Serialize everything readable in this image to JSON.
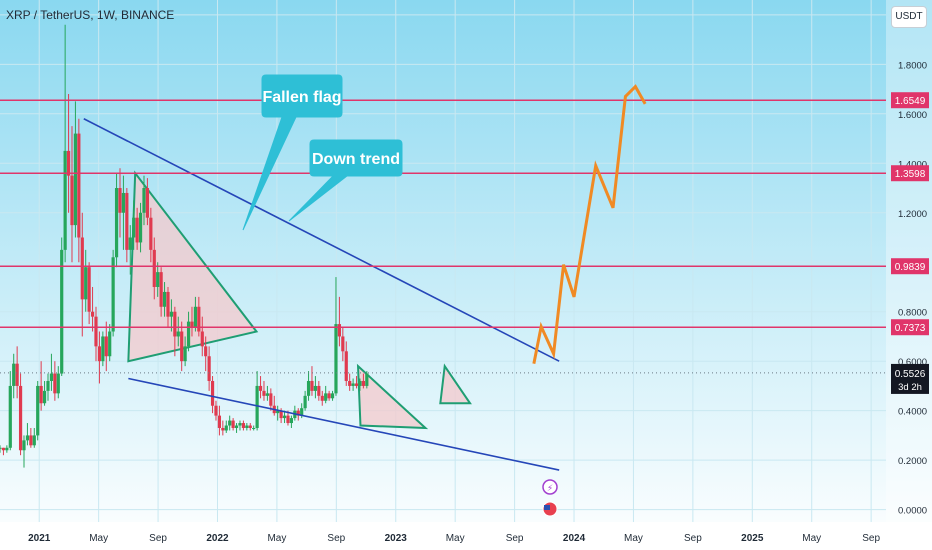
{
  "header": {
    "symbol_title": "XRP / TetherUS, 1W, BINANCE",
    "currency": "USDT"
  },
  "colors": {
    "background_top": "#8ad8f0",
    "background_bottom": "#ffffff",
    "candle_up": "#26a65b",
    "candle_down": "#e03a4f",
    "level_line": "#e0356a",
    "trend_line": "#2546b8",
    "triangle_edge": "#1f9e73",
    "triangle_fill": "#f4c9cc",
    "callout": "#2ebfd6",
    "projection": "#f08a24",
    "last_price_bg": "#131722"
  },
  "chart_data": {
    "type": "candlestick",
    "title": "XRP / TetherUS, 1W, BINANCE",
    "x_axis": {
      "ticks": [
        "2021",
        "May",
        "Sep",
        "2022",
        "May",
        "Sep",
        "2023",
        "May",
        "Sep",
        "2024",
        "May",
        "Sep",
        "2025",
        "May",
        "Sep"
      ],
      "range": [
        "2020-10",
        "2025-09"
      ]
    },
    "y_axis": {
      "ticks": [
        "2.0000",
        "1.8000",
        "1.6000",
        "1.4000",
        "1.2000",
        "1.0000",
        "0.8000",
        "0.6000",
        "0.4000",
        "0.2000",
        "0.0000"
      ],
      "range": [
        -0.05,
        2.06
      ],
      "scale": "linear"
    },
    "price_levels": [
      {
        "label": "1.6549",
        "value": 1.6549
      },
      {
        "label": "1.3598",
        "value": 1.3598
      },
      {
        "label": "0.9839",
        "value": 0.9839
      },
      {
        "label": "0.7373",
        "value": 0.7373
      }
    ],
    "last_price": {
      "label": "0.5526",
      "value": 0.5526,
      "countdown": "3d 2h"
    },
    "annotations": [
      {
        "label": "Fallen flag",
        "kind": "callout"
      },
      {
        "label": "Down trend",
        "kind": "callout"
      }
    ],
    "trend_lines": [
      {
        "name": "upper",
        "from": [
          "2021-04",
          1.58
        ],
        "to": [
          "2023-12",
          0.6
        ]
      },
      {
        "name": "lower",
        "from": [
          "2021-07",
          0.53
        ],
        "to": [
          "2023-12",
          0.16
        ]
      }
    ],
    "triangles": [
      {
        "points": [
          [
            "2021-07-15",
            1.36
          ],
          [
            "2021-07-01",
            0.6
          ],
          [
            "2022-03-20",
            0.72
          ]
        ]
      },
      {
        "points": [
          [
            "2022-10-15",
            0.58
          ],
          [
            "2022-10-20",
            0.34
          ],
          [
            "2023-03-01",
            0.33
          ]
        ]
      },
      {
        "points": [
          [
            "2023-04-10",
            0.58
          ],
          [
            "2023-04-01",
            0.43
          ],
          [
            "2023-06-01",
            0.43
          ]
        ]
      }
    ],
    "projection": [
      [
        "2023-10-10",
        0.59
      ],
      [
        "2023-10-25",
        0.74
      ],
      [
        "2023-11-20",
        0.63
      ],
      [
        "2023-12-10",
        0.99
      ],
      [
        "2024-01-01",
        0.86
      ],
      [
        "2024-02-15",
        1.39
      ],
      [
        "2024-03-20",
        1.22
      ],
      [
        "2024-04-15",
        1.67
      ],
      [
        "2024-05-05",
        1.71
      ],
      [
        "2024-05-25",
        1.64
      ]
    ],
    "events": [
      {
        "icon": "lightning-icon"
      },
      {
        "icon": "us-flag-icon"
      }
    ],
    "series_hint": "weekly OHLC, approximate reading of candles",
    "candles": [
      [
        0.25,
        0.26,
        0.23,
        0.25
      ],
      [
        0.25,
        0.25,
        0.22,
        0.24
      ],
      [
        0.24,
        0.26,
        0.23,
        0.25
      ],
      [
        0.25,
        0.56,
        0.24,
        0.5
      ],
      [
        0.5,
        0.63,
        0.45,
        0.59
      ],
      [
        0.59,
        0.66,
        0.45,
        0.5
      ],
      [
        0.5,
        0.55,
        0.22,
        0.24
      ],
      [
        0.24,
        0.3,
        0.17,
        0.28
      ],
      [
        0.28,
        0.35,
        0.26,
        0.3
      ],
      [
        0.3,
        0.33,
        0.25,
        0.26
      ],
      [
        0.26,
        0.33,
        0.25,
        0.3
      ],
      [
        0.3,
        0.52,
        0.28,
        0.5
      ],
      [
        0.5,
        0.6,
        0.4,
        0.43
      ],
      [
        0.43,
        0.52,
        0.42,
        0.48
      ],
      [
        0.48,
        0.55,
        0.44,
        0.52
      ],
      [
        0.52,
        0.63,
        0.48,
        0.55
      ],
      [
        0.55,
        0.6,
        0.44,
        0.47
      ],
      [
        0.47,
        0.58,
        0.45,
        0.55
      ],
      [
        0.55,
        1.1,
        0.54,
        1.05
      ],
      [
        1.05,
        1.96,
        1.0,
        1.45
      ],
      [
        1.45,
        1.68,
        1.2,
        1.35
      ],
      [
        1.35,
        1.55,
        1.0,
        1.15
      ],
      [
        1.15,
        1.65,
        1.1,
        1.52
      ],
      [
        1.52,
        1.58,
        1.0,
        1.1
      ],
      [
        1.1,
        1.2,
        0.7,
        0.85
      ],
      [
        0.85,
        1.05,
        0.8,
        0.98
      ],
      [
        0.98,
        1.0,
        0.75,
        0.8
      ],
      [
        0.8,
        0.9,
        0.72,
        0.78
      ],
      [
        0.78,
        0.82,
        0.6,
        0.66
      ],
      [
        0.66,
        0.72,
        0.51,
        0.6
      ],
      [
        0.6,
        0.72,
        0.58,
        0.7
      ],
      [
        0.7,
        0.76,
        0.56,
        0.62
      ],
      [
        0.62,
        0.75,
        0.6,
        0.72
      ],
      [
        0.72,
        1.05,
        0.7,
        1.02
      ],
      [
        1.02,
        1.36,
        0.98,
        1.3
      ],
      [
        1.3,
        1.38,
        1.1,
        1.2
      ],
      [
        1.2,
        1.35,
        1.05,
        1.28
      ],
      [
        1.28,
        1.3,
        1.0,
        1.05
      ],
      [
        1.05,
        1.15,
        0.95,
        1.1
      ],
      [
        1.1,
        1.25,
        1.05,
        1.18
      ],
      [
        1.18,
        1.22,
        1.05,
        1.08
      ],
      [
        1.08,
        1.24,
        1.04,
        1.2
      ],
      [
        1.2,
        1.35,
        1.15,
        1.3
      ],
      [
        1.3,
        1.34,
        1.15,
        1.18
      ],
      [
        1.18,
        1.22,
        1.0,
        1.05
      ],
      [
        1.05,
        1.1,
        0.85,
        0.9
      ],
      [
        0.9,
        1.0,
        0.86,
        0.96
      ],
      [
        0.96,
        0.98,
        0.78,
        0.82
      ],
      [
        0.82,
        0.92,
        0.78,
        0.88
      ],
      [
        0.88,
        0.9,
        0.74,
        0.78
      ],
      [
        0.78,
        0.85,
        0.72,
        0.8
      ],
      [
        0.8,
        0.82,
        0.62,
        0.7
      ],
      [
        0.7,
        0.78,
        0.66,
        0.72
      ],
      [
        0.72,
        0.76,
        0.56,
        0.6
      ],
      [
        0.6,
        0.7,
        0.58,
        0.66
      ],
      [
        0.66,
        0.8,
        0.64,
        0.76
      ],
      [
        0.76,
        0.82,
        0.7,
        0.74
      ],
      [
        0.74,
        0.86,
        0.72,
        0.82
      ],
      [
        0.82,
        0.86,
        0.7,
        0.72
      ],
      [
        0.72,
        0.78,
        0.62,
        0.66
      ],
      [
        0.66,
        0.7,
        0.56,
        0.62
      ],
      [
        0.62,
        0.66,
        0.48,
        0.52
      ],
      [
        0.52,
        0.54,
        0.39,
        0.42
      ],
      [
        0.42,
        0.44,
        0.36,
        0.38
      ],
      [
        0.38,
        0.42,
        0.3,
        0.33
      ],
      [
        0.33,
        0.36,
        0.3,
        0.32
      ],
      [
        0.32,
        0.36,
        0.31,
        0.34
      ],
      [
        0.34,
        0.38,
        0.32,
        0.36
      ],
      [
        0.36,
        0.37,
        0.32,
        0.33
      ],
      [
        0.33,
        0.35,
        0.31,
        0.34
      ],
      [
        0.34,
        0.36,
        0.32,
        0.35
      ],
      [
        0.35,
        0.36,
        0.32,
        0.33
      ],
      [
        0.33,
        0.35,
        0.32,
        0.34
      ],
      [
        0.34,
        0.35,
        0.32,
        0.33
      ],
      [
        0.33,
        0.34,
        0.32,
        0.33
      ],
      [
        0.33,
        0.56,
        0.32,
        0.5
      ],
      [
        0.5,
        0.54,
        0.45,
        0.48
      ],
      [
        0.48,
        0.52,
        0.44,
        0.46
      ],
      [
        0.46,
        0.5,
        0.44,
        0.47
      ],
      [
        0.47,
        0.49,
        0.4,
        0.42
      ],
      [
        0.42,
        0.46,
        0.38,
        0.39
      ],
      [
        0.39,
        0.42,
        0.36,
        0.4
      ],
      [
        0.4,
        0.41,
        0.35,
        0.37
      ],
      [
        0.37,
        0.4,
        0.35,
        0.38
      ],
      [
        0.38,
        0.4,
        0.34,
        0.35
      ],
      [
        0.35,
        0.38,
        0.33,
        0.37
      ],
      [
        0.37,
        0.42,
        0.36,
        0.4
      ],
      [
        0.4,
        0.41,
        0.36,
        0.38
      ],
      [
        0.38,
        0.43,
        0.37,
        0.41
      ],
      [
        0.41,
        0.48,
        0.4,
        0.46
      ],
      [
        0.46,
        0.56,
        0.44,
        0.52
      ],
      [
        0.52,
        0.58,
        0.46,
        0.48
      ],
      [
        0.48,
        0.54,
        0.45,
        0.5
      ],
      [
        0.5,
        0.52,
        0.44,
        0.46
      ],
      [
        0.46,
        0.48,
        0.42,
        0.44
      ],
      [
        0.44,
        0.5,
        0.43,
        0.47
      ],
      [
        0.47,
        0.48,
        0.44,
        0.45
      ],
      [
        0.45,
        0.48,
        0.44,
        0.47
      ],
      [
        0.47,
        0.94,
        0.46,
        0.75
      ],
      [
        0.75,
        0.86,
        0.66,
        0.7
      ],
      [
        0.7,
        0.74,
        0.6,
        0.64
      ],
      [
        0.64,
        0.68,
        0.5,
        0.52
      ],
      [
        0.52,
        0.55,
        0.48,
        0.5
      ],
      [
        0.5,
        0.53,
        0.48,
        0.51
      ],
      [
        0.51,
        0.54,
        0.49,
        0.5
      ],
      [
        0.5,
        0.53,
        0.48,
        0.52
      ],
      [
        0.52,
        0.55,
        0.49,
        0.5
      ],
      [
        0.5,
        0.56,
        0.49,
        0.55
      ]
    ]
  }
}
